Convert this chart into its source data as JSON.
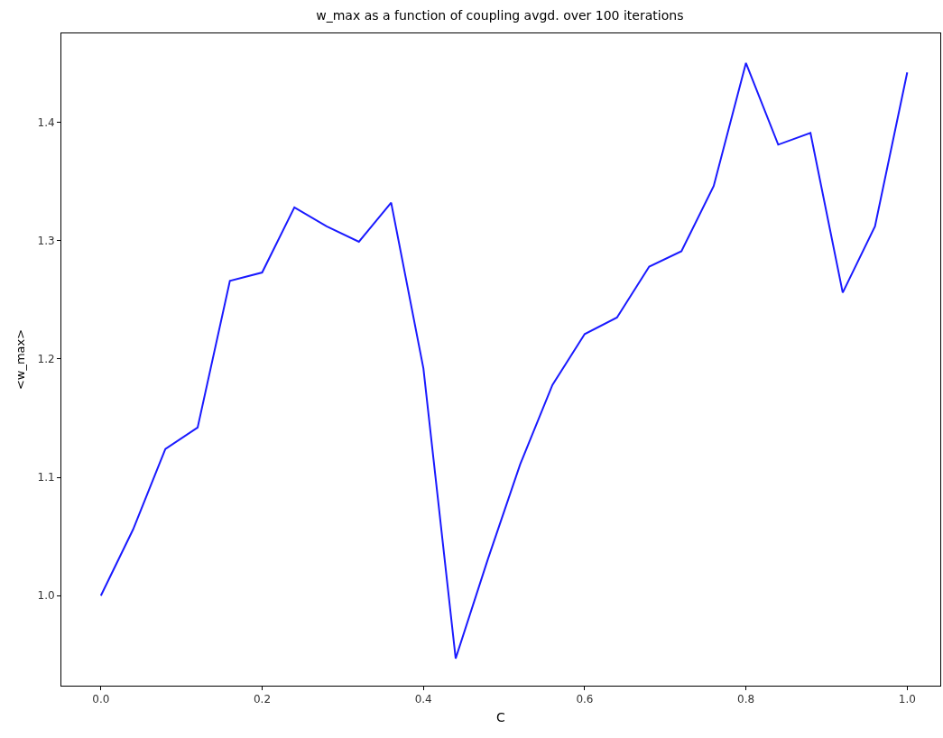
{
  "chart_data": {
    "type": "line",
    "title": "w_max as a function of coupling avgd. over 100 iterations",
    "xlabel": "C",
    "ylabel": "<w_max>",
    "x": [
      0,
      0.04,
      0.08,
      0.12,
      0.16,
      0.2,
      0.24,
      0.28,
      0.32,
      0.36,
      0.4,
      0.44,
      0.48,
      0.52,
      0.56,
      0.6,
      0.64,
      0.68,
      0.72,
      0.76,
      0.8,
      0.84,
      0.88,
      0.92,
      0.96,
      1.0
    ],
    "series": [
      {
        "color": "#1a1aff",
        "values": [
          1.0,
          1.056,
          1.124,
          1.142,
          1.266,
          1.273,
          1.328,
          1.312,
          1.299,
          1.332,
          1.192,
          0.947,
          1.031,
          1.111,
          1.178,
          1.221,
          1.235,
          1.278,
          1.291,
          1.346,
          1.45,
          1.381,
          1.391,
          1.256,
          1.312,
          1.442
        ]
      }
    ],
    "xlim": [
      -0.049,
      1.041
    ],
    "xticks": [
      {
        "value": 0,
        "label": "0.0"
      },
      0.2,
      0.4,
      0.6,
      0.8,
      {
        "value": 1,
        "label": "1.0"
      }
    ],
    "ylim": [
      0.924,
      1.475
    ],
    "yticks": [
      {
        "value": 1,
        "label": "1.0"
      },
      1.1,
      1.2,
      1.3,
      1.4
    ],
    "grid": false,
    "marker": "none",
    "line_style": "solid"
  }
}
